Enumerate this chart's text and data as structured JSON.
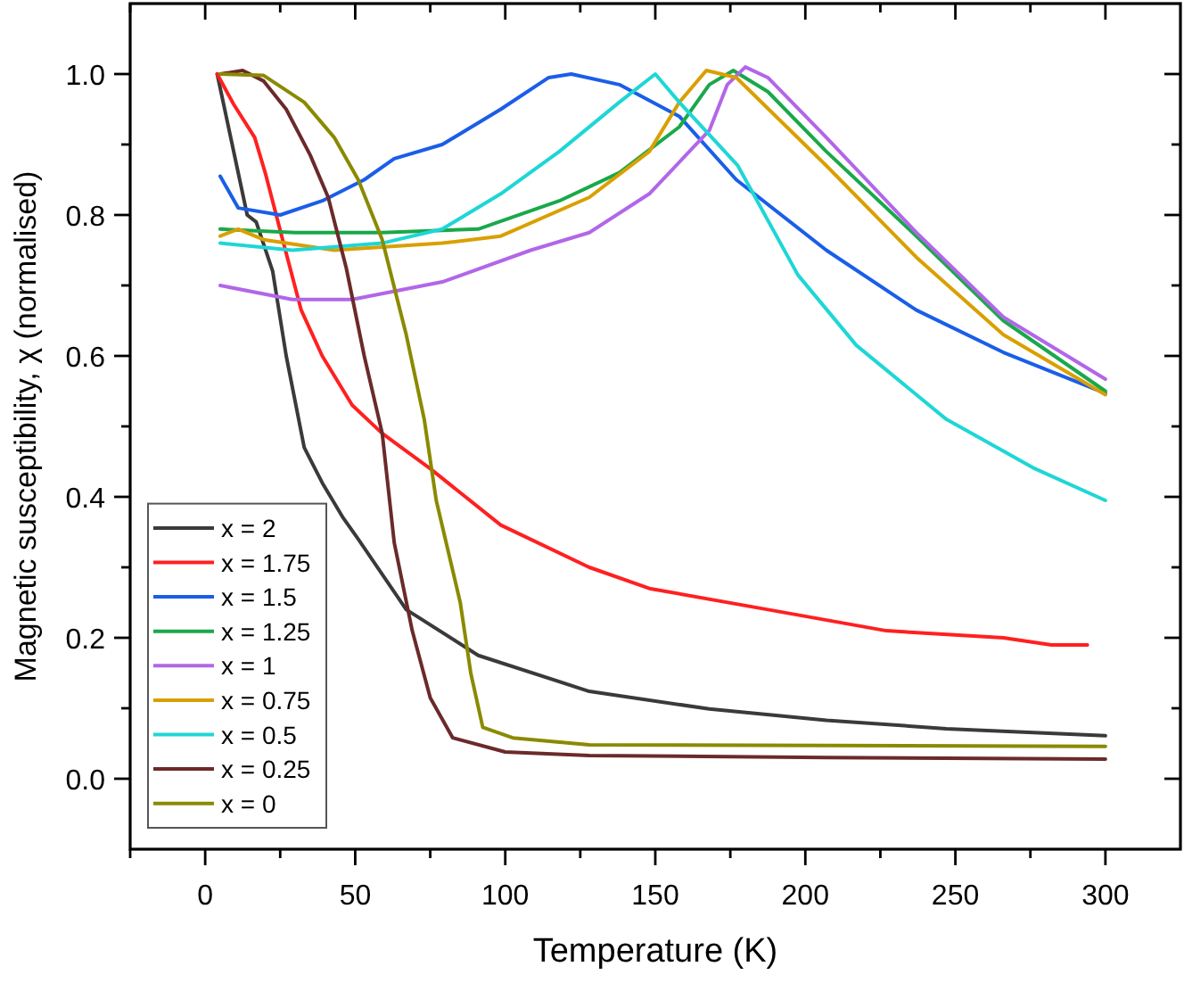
{
  "chart_data": {
    "type": "line",
    "xlabel": "Temperature (K)",
    "ylabel": "Magnetic susceptibility, χ (normalised)",
    "xlim": [
      -25,
      325
    ],
    "ylim": [
      -0.1,
      1.1
    ],
    "xticks": [
      {
        "value": -25,
        "label": null
      },
      0,
      {
        "value": 25,
        "label": null
      },
      50,
      {
        "value": 75,
        "label": null
      },
      100,
      {
        "value": 125,
        "label": null
      },
      150,
      {
        "value": 175,
        "label": null
      },
      200,
      {
        "value": 225,
        "label": null
      },
      250,
      {
        "value": 275,
        "label": null
      },
      300
    ],
    "yticks": [
      {
        "value": 0,
        "label": "0.0"
      },
      {
        "value": 0.1,
        "label": null
      },
      0.2,
      {
        "value": 0.3,
        "label": null
      },
      0.4,
      {
        "value": 0.5,
        "label": null
      },
      0.6,
      {
        "value": 0.7,
        "label": null
      },
      0.8,
      {
        "value": 0.9,
        "label": null
      },
      {
        "value": 1,
        "label": "1.0"
      }
    ],
    "grid": false,
    "legend": "bottom left",
    "marker": "none",
    "line_style": "solid",
    "series": [
      {
        "name": "x = 2",
        "color": "#3a3a3a",
        "x": [
          4,
          9,
          14,
          17,
          22.5,
          27,
          33,
          39,
          46,
          51,
          67,
          91,
          128,
          168,
          207,
          247,
          300
        ],
        "values": [
          1.0,
          0.9,
          0.8,
          0.79,
          0.72,
          0.6,
          0.47,
          0.42,
          0.37,
          0.34,
          0.24,
          0.175,
          0.124,
          0.099,
          0.083,
          0.071,
          0.061
        ]
      },
      {
        "name": "x = 1.75",
        "color": "#ff2020",
        "x": [
          4,
          9.5,
          16.5,
          20,
          25.5,
          32,
          39,
          49,
          59,
          75,
          98.5,
          128,
          148,
          187.5,
          227,
          266,
          282,
          294
        ],
        "values": [
          1.0,
          0.957,
          0.91,
          0.86,
          0.77,
          0.665,
          0.6,
          0.53,
          0.49,
          0.44,
          0.36,
          0.3,
          0.27,
          0.24,
          0.21,
          0.2,
          0.19,
          0.19
        ]
      },
      {
        "name": "x = 1.5",
        "color": "#1a5ee8",
        "x": [
          5,
          11,
          25,
          39,
          53,
          63,
          79,
          98.5,
          114.5,
          122,
          138,
          158,
          177,
          207,
          237,
          266,
          300
        ],
        "values": [
          0.855,
          0.81,
          0.8,
          0.82,
          0.85,
          0.88,
          0.9,
          0.95,
          0.995,
          1.0,
          0.985,
          0.94,
          0.85,
          0.75,
          0.665,
          0.605,
          0.547
        ]
      },
      {
        "name": "x = 1.25",
        "color": "#1aa84a",
        "x": [
          5,
          30,
          59,
          91,
          118,
          138,
          158,
          168,
          176,
          187.5,
          207,
          237,
          266,
          300
        ],
        "values": [
          0.78,
          0.775,
          0.775,
          0.78,
          0.82,
          0.86,
          0.925,
          0.985,
          1.005,
          0.975,
          0.89,
          0.77,
          0.65,
          0.55
        ]
      },
      {
        "name": "x = 1",
        "color": "#b266e8",
        "x": [
          5,
          29,
          49,
          79,
          108.5,
          128,
          148,
          168,
          174,
          180,
          187.5,
          207,
          237,
          266,
          300
        ],
        "values": [
          0.7,
          0.68,
          0.68,
          0.705,
          0.75,
          0.775,
          0.83,
          0.92,
          0.985,
          1.01,
          0.995,
          0.91,
          0.775,
          0.655,
          0.567
        ]
      },
      {
        "name": "x = 0.75",
        "color": "#d9a000",
        "x": [
          5,
          11,
          19.5,
          43,
          79,
          98.5,
          128,
          148,
          158,
          167,
          177,
          207,
          237,
          266,
          300
        ],
        "values": [
          0.77,
          0.78,
          0.765,
          0.75,
          0.76,
          0.77,
          0.825,
          0.89,
          0.96,
          1.005,
          0.995,
          0.87,
          0.74,
          0.63,
          0.545
        ]
      },
      {
        "name": "x = 0.5",
        "color": "#1fd6d6",
        "x": [
          5,
          29,
          59,
          79,
          98.5,
          118,
          138,
          150,
          158,
          177.5,
          197.5,
          217,
          247,
          276.5,
          300
        ],
        "values": [
          0.76,
          0.75,
          0.76,
          0.78,
          0.83,
          0.89,
          0.96,
          1.0,
          0.96,
          0.87,
          0.715,
          0.615,
          0.51,
          0.44,
          0.395
        ]
      },
      {
        "name": "x = 0.25",
        "color": "#6b2a2a",
        "x": [
          5,
          12.5,
          19.5,
          27,
          35,
          41,
          47,
          53,
          59,
          63,
          69,
          75,
          82.5,
          100,
          128,
          207,
          300
        ],
        "values": [
          1.0,
          1.005,
          0.99,
          0.95,
          0.885,
          0.825,
          0.725,
          0.6,
          0.49,
          0.335,
          0.21,
          0.115,
          0.058,
          0.038,
          0.033,
          0.03,
          0.028
        ]
      },
      {
        "name": "x = 0",
        "color": "#8a8a00",
        "x": [
          5,
          19.5,
          33,
          43,
          51,
          59,
          67,
          73,
          77,
          85,
          88.5,
          92.5,
          102.5,
          128,
          300
        ],
        "values": [
          1.0,
          0.998,
          0.96,
          0.91,
          0.85,
          0.765,
          0.63,
          0.51,
          0.395,
          0.25,
          0.15,
          0.073,
          0.058,
          0.048,
          0.046
        ]
      }
    ]
  }
}
